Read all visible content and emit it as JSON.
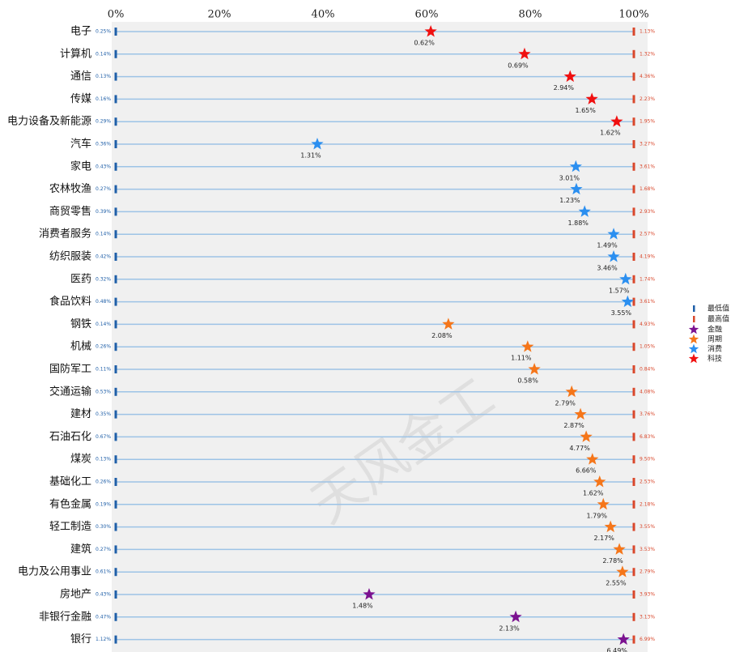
{
  "chart_data": {
    "type": "percentile",
    "xlim": [
      0,
      100
    ],
    "xticks": [
      {
        "value": 0,
        "label": "0%"
      },
      {
        "value": 20,
        "label": "20%"
      },
      {
        "value": 40,
        "label": "40%"
      },
      {
        "value": 60,
        "label": "60%"
      },
      {
        "value": 80,
        "label": "80%"
      },
      {
        "value": 100,
        "label": "100%"
      }
    ],
    "watermark": "天风金工",
    "min_marker": {
      "name": "最低值",
      "color": "#1f5fa8"
    },
    "max_marker": {
      "name": "最高值",
      "color": "#d9472b"
    },
    "legend": "right",
    "series": [
      {
        "name": "金融",
        "color": "#7b1290",
        "categories": [
          "房地产",
          "非银行金融",
          "银行"
        ],
        "percentiles": [
          48.9,
          77.2,
          98.0
        ],
        "values": [
          1.48,
          2.13,
          6.49
        ],
        "value_labels": [
          "1.48%",
          "2.13%",
          "6.49%"
        ],
        "min": [
          0.43,
          0.47,
          1.12
        ],
        "min_labels": [
          "0.43%",
          "0.47%",
          "1.12%"
        ],
        "max": [
          3.93,
          3.13,
          6.99
        ],
        "max_labels": [
          "3.93%",
          "3.13%",
          "6.99%"
        ]
      },
      {
        "name": "周期",
        "color": "#f5761a",
        "categories": [
          "钢铁",
          "机械",
          "国防军工",
          "交通运输",
          "建材",
          "石油石化",
          "煤炭",
          "基础化工",
          "有色金属",
          "轻工制造",
          "建筑",
          "电力及公用事业"
        ],
        "percentiles": [
          64.2,
          79.5,
          80.8,
          88.0,
          89.7,
          90.8,
          92.0,
          93.4,
          94.1,
          95.5,
          97.2,
          97.8
        ],
        "values": [
          2.08,
          1.11,
          0.58,
          2.79,
          2.87,
          4.77,
          6.66,
          1.62,
          1.79,
          2.17,
          2.78,
          2.55
        ],
        "value_labels": [
          "2.08%",
          "1.11%",
          "0.58%",
          "2.79%",
          "2.87%",
          "4.77%",
          "6.66%",
          "1.62%",
          "1.79%",
          "2.17%",
          "2.78%",
          "2.55%"
        ],
        "min": [
          0.14,
          0.26,
          0.11,
          0.53,
          0.35,
          0.67,
          0.13,
          0.26,
          0.19,
          0.3,
          0.27,
          0.61
        ],
        "min_labels": [
          "0.14%",
          "0.26%",
          "0.11%",
          "0.53%",
          "0.35%",
          "0.67%",
          "0.13%",
          "0.26%",
          "0.19%",
          "0.30%",
          "0.27%",
          "0.61%"
        ],
        "max": [
          4.93,
          1.05,
          0.84,
          4.08,
          3.76,
          6.83,
          9.5,
          2.53,
          2.18,
          3.55,
          3.53,
          2.79
        ],
        "max_labels": [
          "4.93%",
          "1.05%",
          "0.84%",
          "4.08%",
          "3.76%",
          "6.83%",
          "9.50%",
          "2.53%",
          "2.18%",
          "3.55%",
          "3.53%",
          "2.79%"
        ]
      },
      {
        "name": "消费",
        "color": "#2b8ff0",
        "categories": [
          "汽车",
          "家电",
          "农林牧渔",
          "商贸零售",
          "消费者服务",
          "纺织服装",
          "医药",
          "食品饮料"
        ],
        "percentiles": [
          38.9,
          88.8,
          88.9,
          90.5,
          96.1,
          96.1,
          98.4,
          98.8
        ],
        "values": [
          1.31,
          3.01,
          1.23,
          1.88,
          1.49,
          3.46,
          1.57,
          3.55
        ],
        "value_labels": [
          "1.31%",
          "3.01%",
          "1.23%",
          "1.88%",
          "1.49%",
          "3.46%",
          "1.57%",
          "3.55%"
        ],
        "min": [
          0.36,
          0.43,
          0.27,
          0.39,
          0.14,
          0.42,
          0.32,
          0.48
        ],
        "min_labels": [
          "0.36%",
          "0.43%",
          "0.27%",
          "0.39%",
          "0.14%",
          "0.42%",
          "0.32%",
          "0.48%"
        ],
        "max": [
          3.27,
          3.61,
          1.68,
          2.93,
          2.57,
          4.19,
          1.74,
          3.61
        ],
        "max_labels": [
          "3.27%",
          "3.61%",
          "1.68%",
          "2.93%",
          "2.57%",
          "4.19%",
          "1.74%",
          "3.61%"
        ]
      },
      {
        "name": "科技",
        "color": "#f01010",
        "categories": [
          "电子",
          "计算机",
          "通信",
          "传媒",
          "电力设备及新能源"
        ],
        "percentiles": [
          60.8,
          78.9,
          87.7,
          91.9,
          96.7
        ],
        "values": [
          0.62,
          0.69,
          2.94,
          1.65,
          1.62
        ],
        "value_labels": [
          "0.62%",
          "0.69%",
          "2.94%",
          "1.65%",
          "1.62%"
        ],
        "min": [
          0.25,
          0.14,
          0.13,
          0.16,
          0.29
        ],
        "min_labels": [
          "0.25%",
          "0.14%",
          "0.13%",
          "0.16%",
          "0.29%"
        ],
        "max": [
          1.13,
          1.32,
          4.36,
          2.23,
          1.95
        ],
        "max_labels": [
          "1.13%",
          "1.32%",
          "4.36%",
          "2.23%",
          "1.95%"
        ]
      }
    ]
  }
}
